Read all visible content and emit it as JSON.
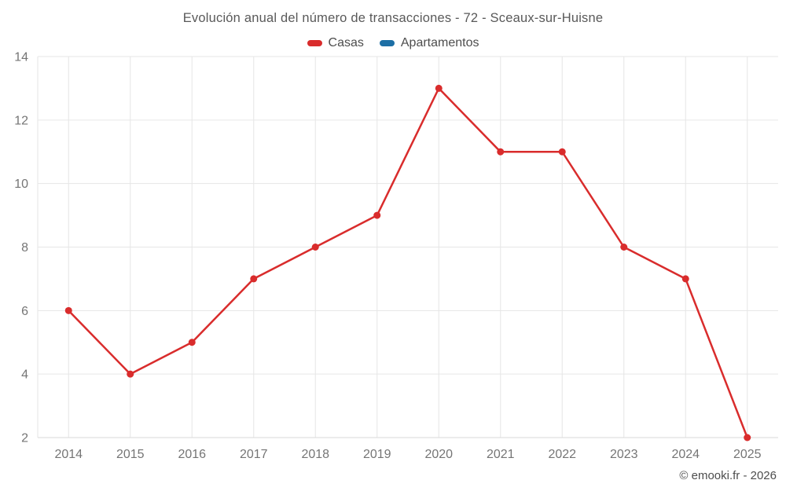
{
  "chart_data": {
    "type": "line",
    "title": "Evolución anual del número de transacciones - 72 - Sceaux-sur-Huisne",
    "categories": [
      "2014",
      "2015",
      "2016",
      "2017",
      "2018",
      "2019",
      "2020",
      "2021",
      "2022",
      "2023",
      "2024",
      "2025"
    ],
    "series": [
      {
        "name": "Casas",
        "color": "#d92c2c",
        "values": [
          6,
          4,
          5,
          7,
          8,
          9,
          13,
          11,
          11,
          8,
          7,
          2
        ]
      },
      {
        "name": "Apartamentos",
        "color": "#1d6fa5",
        "values": []
      }
    ],
    "xlabel": "",
    "ylabel": "",
    "ylim": [
      2,
      14
    ],
    "yticks": [
      2,
      4,
      6,
      8,
      10,
      12,
      14
    ],
    "grid": true,
    "legend_position": "top",
    "gridline_color": "#e6e6e6",
    "axis_line_color": "#d9d9d9",
    "axis_label_color": "#757575"
  },
  "footer": {
    "text": "© emooki.fr - 2026"
  }
}
